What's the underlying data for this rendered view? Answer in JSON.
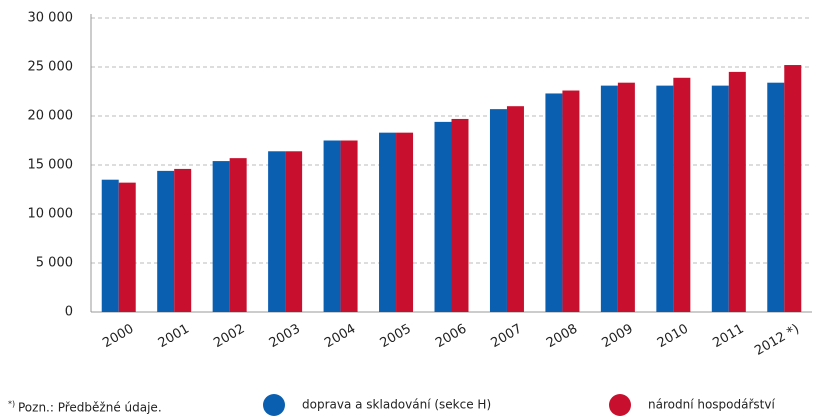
{
  "chart_data": {
    "type": "bar",
    "categories": [
      "2000",
      "2001",
      "2002",
      "2003",
      "2004",
      "2005",
      "2006",
      "2007",
      "2008",
      "2009",
      "2010",
      "2011",
      "2012 *)"
    ],
    "series": [
      {
        "name": "doprava a skladování (sekce H)",
        "color": "#0b5fb0",
        "values": [
          13500,
          14400,
          15400,
          16400,
          17500,
          18300,
          19400,
          20700,
          22300,
          23100,
          23100,
          23100,
          23400
        ]
      },
      {
        "name": "národní hospodářství",
        "color": "#c8102e",
        "values": [
          13200,
          14600,
          15700,
          16400,
          17500,
          18300,
          19700,
          21000,
          22600,
          23400,
          23900,
          24500,
          25200
        ]
      }
    ],
    "ylim": [
      0,
      30000
    ],
    "yticks": [
      0,
      {
        "value": 5000,
        "label": "5 000"
      },
      {
        "value": 10000,
        "label": "10 000"
      },
      {
        "value": 15000,
        "label": "15 000"
      },
      {
        "value": 20000,
        "label": "20 000"
      },
      {
        "value": 25000,
        "label": "25 000"
      },
      {
        "value": 30000,
        "label": "30 000"
      }
    ],
    "grid": true,
    "footnote_mark": "*)",
    "footnote": "Pozn.: Předběžné údaje."
  }
}
